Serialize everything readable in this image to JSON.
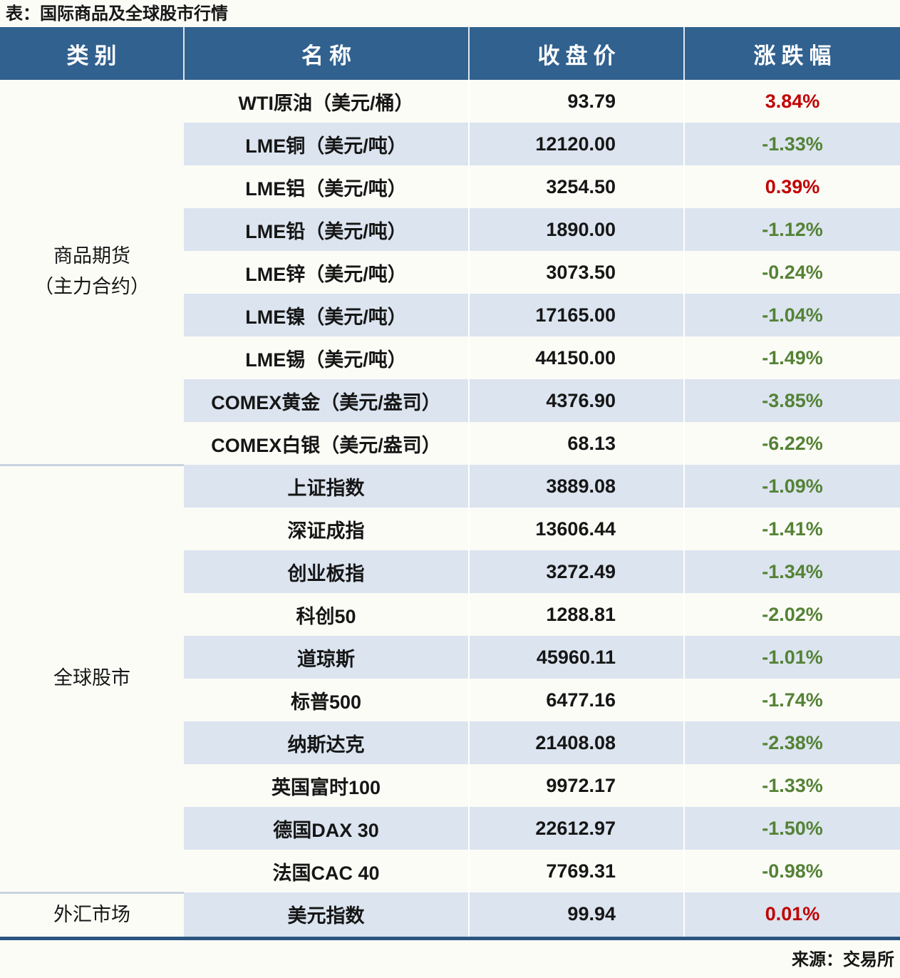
{
  "chart_data": {
    "type": "table",
    "title": "表：国际商品及全球股市行情",
    "source": "来源：交易所",
    "columns": [
      "类别",
      "名称",
      "收盘价",
      "涨跌幅"
    ],
    "layout": {
      "stripe_alternating": true,
      "change_up_color_meaning": "red = up",
      "change_down_color_meaning": "green = down"
    },
    "sections": [
      {
        "category": "商品期货（主力合约）",
        "category_lines": [
          "商品期货",
          "（主力合约）"
        ],
        "rows": [
          {
            "name": "WTI原油（美元/桶）",
            "close": "93.79",
            "change": "3.84%",
            "direction": "up"
          },
          {
            "name": "LME铜（美元/吨）",
            "close": "12120.00",
            "change": "-1.33%",
            "direction": "down"
          },
          {
            "name": "LME铝（美元/吨）",
            "close": "3254.50",
            "change": "0.39%",
            "direction": "up"
          },
          {
            "name": "LME铅（美元/吨）",
            "close": "1890.00",
            "change": "-1.12%",
            "direction": "down"
          },
          {
            "name": "LME锌（美元/吨）",
            "close": "3073.50",
            "change": "-0.24%",
            "direction": "down"
          },
          {
            "name": "LME镍（美元/吨）",
            "close": "17165.00",
            "change": "-1.04%",
            "direction": "down"
          },
          {
            "name": "LME锡（美元/吨）",
            "close": "44150.00",
            "change": "-1.49%",
            "direction": "down"
          },
          {
            "name": "COMEX黄金（美元/盎司）",
            "close": "4376.90",
            "change": "-3.85%",
            "direction": "down"
          },
          {
            "name": "COMEX白银（美元/盎司）",
            "close": "68.13",
            "change": "-6.22%",
            "direction": "down"
          }
        ]
      },
      {
        "category": "全球股市",
        "category_lines": [
          "全球股市"
        ],
        "rows": [
          {
            "name": "上证指数",
            "close": "3889.08",
            "change": "-1.09%",
            "direction": "down"
          },
          {
            "name": "深证成指",
            "close": "13606.44",
            "change": "-1.41%",
            "direction": "down"
          },
          {
            "name": "创业板指",
            "close": "3272.49",
            "change": "-1.34%",
            "direction": "down"
          },
          {
            "name": "科创50",
            "close": "1288.81",
            "change": "-2.02%",
            "direction": "down"
          },
          {
            "name": "道琼斯",
            "close": "45960.11",
            "change": "-1.01%",
            "direction": "down"
          },
          {
            "name": "标普500",
            "close": "6477.16",
            "change": "-1.74%",
            "direction": "down"
          },
          {
            "name": "纳斯达克",
            "close": "21408.08",
            "change": "-2.38%",
            "direction": "down"
          },
          {
            "name": "英国富时100",
            "close": "9972.17",
            "change": "-1.33%",
            "direction": "down"
          },
          {
            "name": "德国DAX 30",
            "close": "22612.97",
            "change": "-1.50%",
            "direction": "down"
          },
          {
            "name": "法国CAC 40",
            "close": "7769.31",
            "change": "-0.98%",
            "direction": "down"
          }
        ]
      },
      {
        "category": "外汇市场",
        "category_lines": [
          "外汇市场"
        ],
        "rows": [
          {
            "name": "美元指数",
            "close": "99.94",
            "change": "0.01%",
            "direction": "up"
          }
        ]
      }
    ]
  },
  "colors": {
    "header_bg": "#31618F",
    "header_text": "#FFFFFF",
    "row_stripe": "#DBE4EF",
    "row_plain": "#FCFCF7",
    "positive": "#C00000",
    "negative": "#548235",
    "bottom_border": "#2B5580",
    "section_divider": "#C9D3DE",
    "text": "#161616"
  }
}
